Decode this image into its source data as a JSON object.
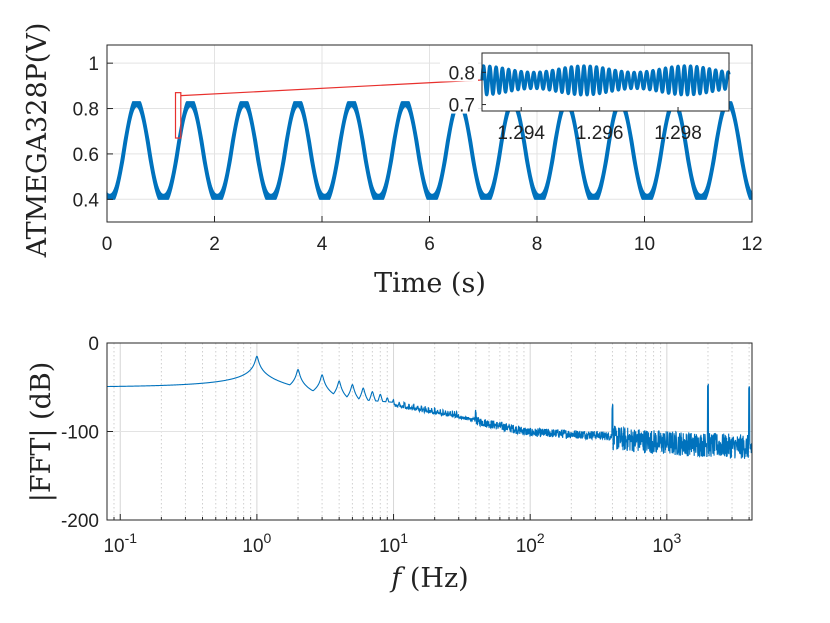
{
  "chart_data": [
    {
      "type": "line",
      "xlabel": "Time (s)",
      "ylabel": "ATMEGA328P(V)",
      "xlim": [
        0,
        12
      ],
      "ylim": [
        0.3,
        1.08
      ],
      "xticks": [
        0,
        2,
        4,
        6,
        8,
        10,
        12
      ],
      "yticks": [
        0.4,
        0.6,
        0.8,
        1
      ],
      "ytick_labels": [
        "0.4",
        "0.6",
        "0.8",
        "1"
      ],
      "grid": true,
      "color": "#0072BD",
      "signal": {
        "fundamental_hz": 1,
        "envelope_min_v": [
          0.4,
          0.43
        ],
        "envelope_max_v": [
          0.78,
          0.83
        ],
        "x_start": 0.0,
        "x_end": 12.0
      },
      "highlight_window": {
        "x": [
          1.293,
          1.299
        ],
        "y": [
          0.67,
          0.87
        ]
      },
      "inset": {
        "xlim": [
          1.293,
          1.2993
        ],
        "ylim": [
          0.68,
          0.86
        ],
        "xticks": [
          1.294,
          1.296,
          1.298
        ],
        "xtick_labels": [
          "1.294",
          "1.296",
          "1.298"
        ],
        "yticks": [
          0.7,
          0.8
        ],
        "ytick_labels": [
          "0.7",
          "0.8"
        ],
        "center_v": 0.775,
        "amplitude_v": [
          0.025,
          0.045
        ],
        "ripple_period_s": 0.00016
      }
    },
    {
      "type": "line",
      "xlabel": "f (Hz)",
      "xlabel_italic": "f",
      "xlabel_rest": " (Hz)",
      "ylabel": "|FFT| (dB)",
      "xscale": "log",
      "xlim": [
        0.08,
        4200
      ],
      "ylim": [
        -200,
        0
      ],
      "yticks": [
        0,
        -100,
        -200
      ],
      "ytick_labels": [
        "0",
        "-100",
        "-200"
      ],
      "xticks_decades": [
        {
          "base": "10",
          "exp": "-1",
          "value": 0.1
        },
        {
          "base": "10",
          "exp": "0",
          "value": 1
        },
        {
          "base": "10",
          "exp": "1",
          "value": 10
        },
        {
          "base": "10",
          "exp": "2",
          "value": 100
        },
        {
          "base": "10",
          "exp": "3",
          "value": 1000
        }
      ],
      "grid": true,
      "color": "#0072BD",
      "baseline_db": -59,
      "harmonics": [
        {
          "f": 1,
          "db": -15
        },
        {
          "f": 2,
          "db": -30
        },
        {
          "f": 3,
          "db": -36
        },
        {
          "f": 4,
          "db": -43
        },
        {
          "f": 5,
          "db": -47
        },
        {
          "f": 6,
          "db": -51
        },
        {
          "f": 7,
          "db": -55
        },
        {
          "f": 8,
          "db": -58
        },
        {
          "f": 9,
          "db": -62
        },
        {
          "f": 10,
          "db": -64
        }
      ],
      "noise_floor": [
        {
          "f": 10,
          "db": -70
        },
        {
          "f": 30,
          "db": -83
        },
        {
          "f": 100,
          "db": -100
        },
        {
          "f": 300,
          "db": -103
        },
        {
          "f": 1000,
          "db": -110
        },
        {
          "f": 4200,
          "db": -115
        }
      ],
      "spikes": [
        {
          "f": 40,
          "db": -81
        },
        {
          "f": 400,
          "db": -75
        },
        {
          "f": 2000,
          "db": -50
        },
        {
          "f": 4000,
          "db": -55
        }
      ]
    }
  ]
}
